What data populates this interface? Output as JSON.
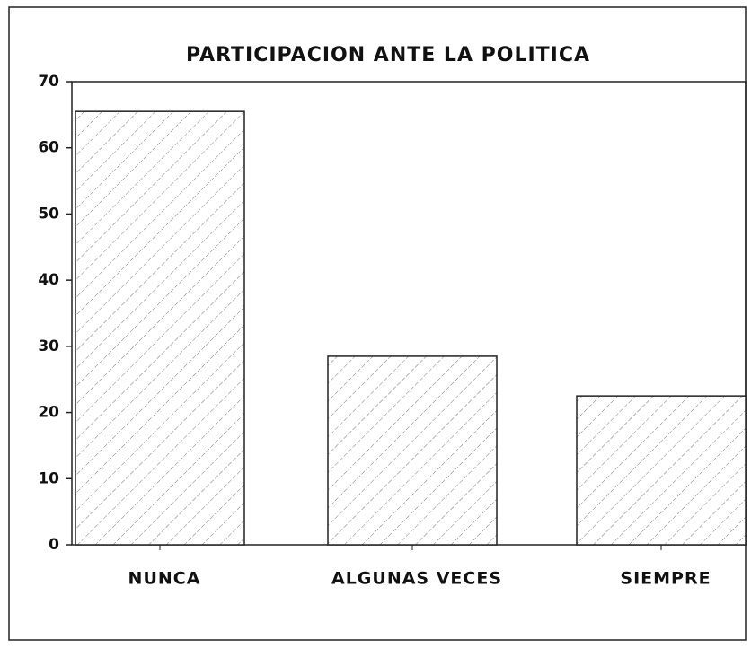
{
  "chart_data": {
    "type": "bar",
    "title": "PARTICIPACION ANTE LA POLITICA",
    "categories": [
      "NUNCA",
      "ALGUNAS VECES",
      "SIEMPRE"
    ],
    "values": [
      65.5,
      28.5,
      22.5
    ],
    "color": "#ffffff",
    "ylim": [
      0,
      70
    ],
    "yticks": [
      0,
      10,
      20,
      30,
      40,
      50,
      60,
      70
    ],
    "grid": false
  }
}
